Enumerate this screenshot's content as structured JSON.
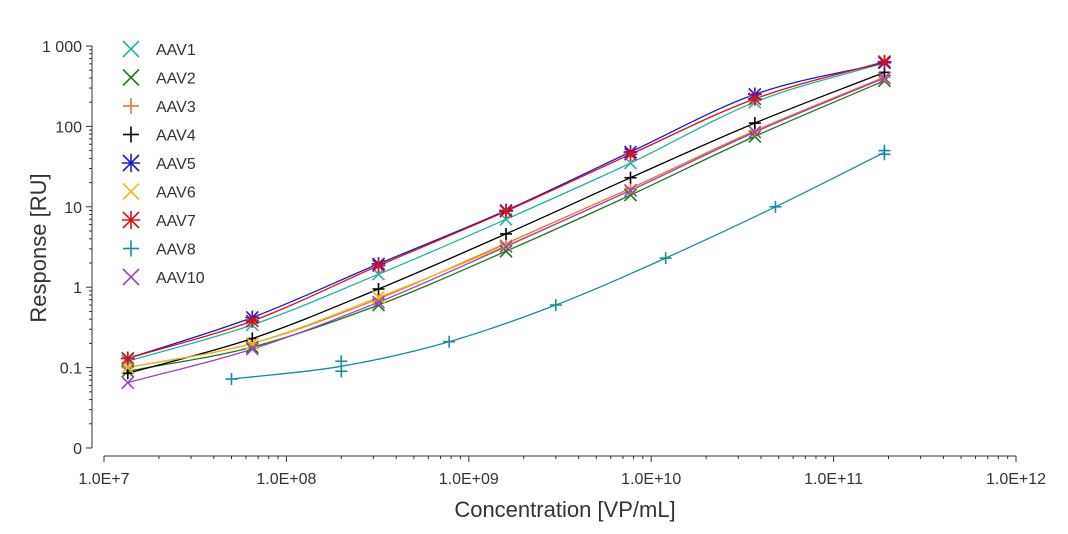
{
  "chart_data": {
    "type": "scatter",
    "title": "",
    "xlabel": "Concentration [VP/mL]",
    "ylabel": "Response [RU]",
    "x_scale": "log",
    "y_scale": "log",
    "xlim": [
      10000000,
      1000000000000
    ],
    "ylim": [
      0.01,
      1000
    ],
    "x_ticks": [
      {
        "value": 10000000,
        "label": "1.0E+7"
      },
      {
        "value": 100000000,
        "label": "1.0E+08"
      },
      {
        "value": 1000000000,
        "label": "1.0E+09"
      },
      {
        "value": 10000000000,
        "label": "1.0E+10"
      },
      {
        "value": 100000000000,
        "label": "1.0E+11"
      },
      {
        "value": 1000000000000,
        "label": "1.0E+12"
      }
    ],
    "y_ticks": [
      {
        "value": 0.01,
        "label": "0"
      },
      {
        "value": 0.1,
        "label": "0.1"
      },
      {
        "value": 1,
        "label": "1"
      },
      {
        "value": 10,
        "label": "10"
      },
      {
        "value": 100,
        "label": "100"
      },
      {
        "value": 1000,
        "label": "1 000"
      }
    ],
    "legend_position": "top-left",
    "grid": false,
    "series": [
      {
        "name": "AAV1",
        "color": "#20b2aa",
        "marker": "x",
        "x": [
          13500000,
          65000000,
          320000000,
          1600000000,
          7700000000,
          37000000000,
          190000000000
        ],
        "y": [
          0.12,
          0.34,
          1.45,
          7.0,
          35,
          200,
          620
        ]
      },
      {
        "name": "AAV2",
        "color": "#1a7a1a",
        "marker": "x",
        "x": [
          13500000,
          65000000,
          320000000,
          1600000000,
          7700000000,
          37000000000,
          190000000000
        ],
        "y": [
          0.09,
          0.18,
          0.6,
          2.8,
          14,
          75,
          370
        ]
      },
      {
        "name": "AAV3",
        "color": "#f07030",
        "marker": "plus",
        "x": [
          13500000,
          65000000,
          320000000,
          1600000000,
          7700000000,
          37000000000,
          190000000000
        ],
        "y": [
          0.1,
          0.2,
          0.72,
          3.5,
          17,
          88,
          410
        ]
      },
      {
        "name": "AAV4",
        "color": "#000000",
        "marker": "plus",
        "x": [
          13500000,
          65000000,
          320000000,
          1600000000,
          7700000000,
          37000000000,
          190000000000
        ],
        "y": [
          0.085,
          0.23,
          0.95,
          4.6,
          23,
          110,
          470
        ]
      },
      {
        "name": "AAV5",
        "color": "#1a1ad0",
        "marker": "star",
        "x": [
          13500000,
          65000000,
          320000000,
          1600000000,
          7700000000,
          37000000000,
          190000000000
        ],
        "y": [
          0.13,
          0.42,
          1.95,
          9.0,
          48,
          250,
          620
        ]
      },
      {
        "name": "AAV6",
        "color": "#f0b820",
        "marker": "x",
        "x": [
          13500000,
          65000000,
          320000000,
          1600000000,
          7700000000,
          37000000000,
          190000000000
        ],
        "y": [
          0.1,
          0.2,
          0.75,
          3.3,
          16,
          85,
          400
        ]
      },
      {
        "name": "AAV7",
        "color": "#e01010",
        "marker": "star",
        "x": [
          13500000,
          65000000,
          320000000,
          1600000000,
          7700000000,
          37000000000,
          190000000000
        ],
        "y": [
          0.13,
          0.38,
          1.85,
          8.8,
          45,
          220,
          640
        ]
      },
      {
        "name": "AAV8",
        "color": "#1a8aa0",
        "marker": "plus",
        "x": [
          50000000,
          200000000,
          200000000,
          780000000,
          3000000000,
          12000000000,
          48000000000,
          190000000000,
          190000000000
        ],
        "y": [
          0.072,
          0.12,
          0.09,
          0.21,
          0.6,
          2.3,
          10,
          50,
          45
        ]
      },
      {
        "name": "AAV10",
        "color": "#a040c0",
        "marker": "x",
        "x": [
          13500000,
          65000000,
          320000000,
          1600000000,
          7700000000,
          37000000000,
          190000000000
        ],
        "y": [
          0.065,
          0.17,
          0.65,
          3.2,
          16,
          85,
          400
        ]
      }
    ]
  }
}
